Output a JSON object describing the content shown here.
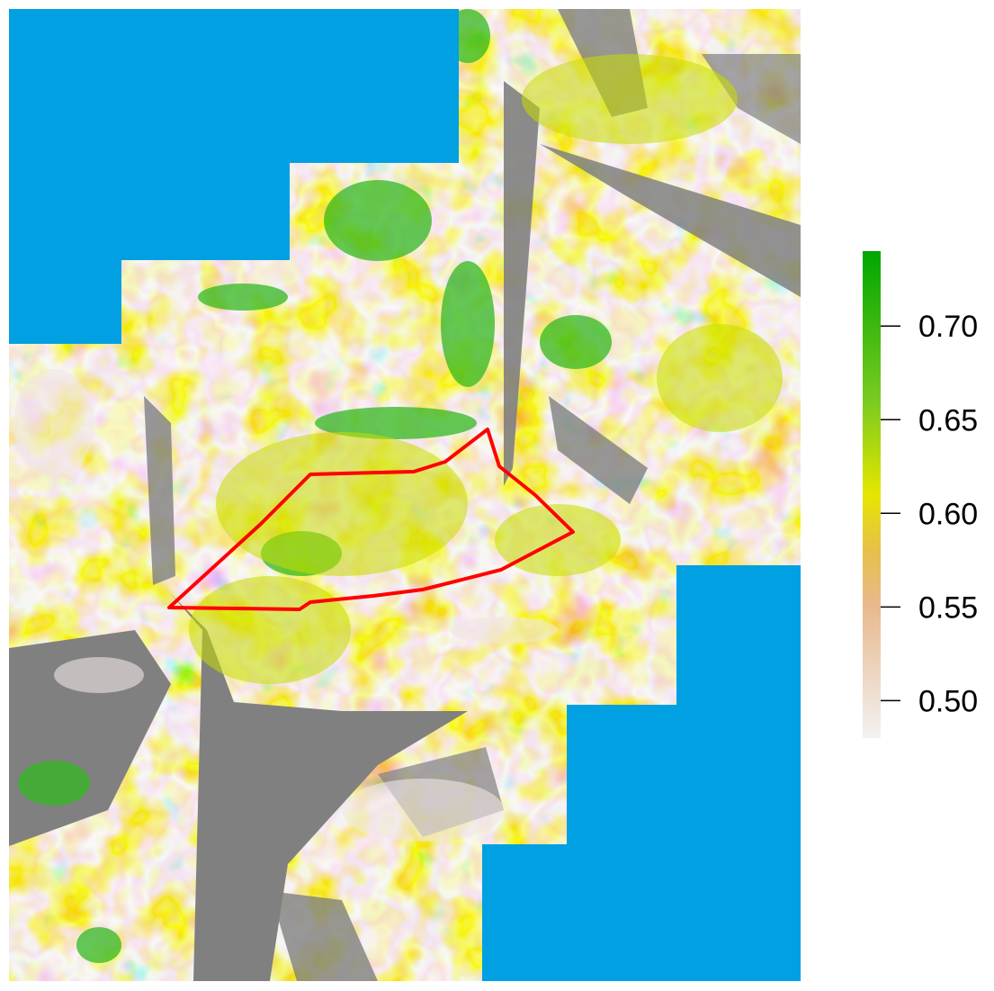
{
  "map": {
    "colors": {
      "water": "#00A0E3",
      "nodata": "#808080",
      "background": "#FFFFFF",
      "boundary": "#FF0000"
    }
  },
  "legend": {
    "range": [
      0.48,
      0.74
    ],
    "ticks": [
      {
        "value": 0.7,
        "label": "0.70"
      },
      {
        "value": 0.65,
        "label": "0.65"
      },
      {
        "value": 0.6,
        "label": "0.60"
      },
      {
        "value": 0.55,
        "label": "0.55"
      },
      {
        "value": 0.5,
        "label": "0.50"
      }
    ],
    "color_stops": [
      {
        "value": 0.48,
        "color": "#F2F2F2"
      },
      {
        "value": 0.55,
        "color": "#E8B98F"
      },
      {
        "value": 0.58,
        "color": "#E6C04A"
      },
      {
        "value": 0.61,
        "color": "#E6E600"
      },
      {
        "value": 0.66,
        "color": "#7ACB20"
      },
      {
        "value": 0.74,
        "color": "#00A600"
      }
    ]
  }
}
